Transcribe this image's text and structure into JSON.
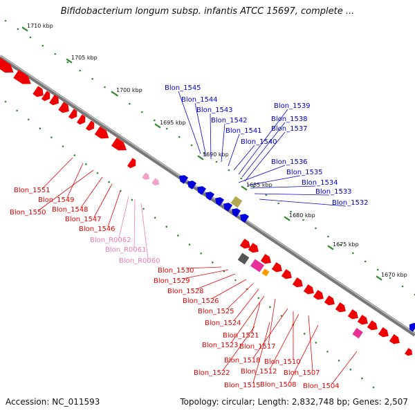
{
  "title": "Bifidobacterium longum subsp. infantis ATCC 15697, complete ...",
  "footer": {
    "accession": "Accession: NC_011593",
    "summary": "Topology: circular; Length: 2,832,748 bp; Genes: 2,507"
  },
  "colors": {
    "backbone": "#888888",
    "forward_gene": "#ee0000",
    "reverse_gene": "#0000dd",
    "rna": "#f5a0c8",
    "other": "#b4a850",
    "tick": "#2e8b2e"
  },
  "ticks": [
    {
      "label": "1710 kbp"
    },
    {
      "label": "1705 kbp"
    },
    {
      "label": "1700 kbp"
    },
    {
      "label": "1695 kbp"
    },
    {
      "label": "1690 kbp"
    },
    {
      "label": "1685 kbp"
    },
    {
      "label": "1680 kbp"
    },
    {
      "label": "1675 kbp"
    },
    {
      "label": "1670 kbp"
    }
  ],
  "blue_labels": [
    "Blon_1545",
    "Blon_1544",
    "Blon_1543",
    "Blon_1542",
    "Blon_1541",
    "Blon_1540",
    "Blon_1539",
    "Blon_1538",
    "Blon_1537",
    "Blon_1536",
    "Blon_1535",
    "Blon_1534",
    "Blon_1533",
    "Blon_1532"
  ],
  "red_labels": [
    "Blon_1551",
    "Blon_1549",
    "Blon_1550",
    "Blon_1548",
    "Blon_1547",
    "Blon_1546",
    "Blon_R0062",
    "Blon_R0061",
    "Blon_R0060",
    "Blon_1530",
    "Blon_1529",
    "Blon_1528",
    "Blon_1526",
    "Blon_1525",
    "Blon_1524",
    "Blon_1521",
    "Blon_1523",
    "Blon_1517",
    "Blon_1518",
    "Blon_1510",
    "Blon_1522",
    "Blon_1512",
    "Blon_1507",
    "Blon_1515",
    "Blon_1508",
    "Blon_1504"
  ]
}
